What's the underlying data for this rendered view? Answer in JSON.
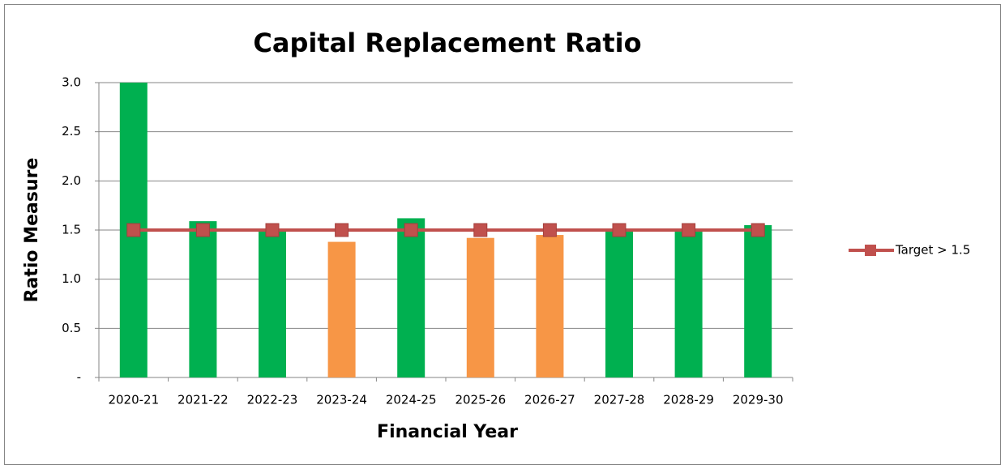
{
  "chart_data": {
    "type": "bar",
    "title": "Capital Replacement Ratio",
    "x_label": "Financial Year",
    "y_label": "Ratio Measure",
    "categories": [
      "2020-21",
      "2021-22",
      "2022-23",
      "2023-24",
      "2024-25",
      "2025-26",
      "2026-27",
      "2027-28",
      "2028-29",
      "2029-30"
    ],
    "series": [
      {
        "type": "bar",
        "colors": [
          "#00b050",
          "#00b050",
          "#00b050",
          "#f79646",
          "#00b050",
          "#f79646",
          "#f79646",
          "#00b050",
          "#00b050",
          "#00b050"
        ],
        "values": [
          3.0,
          1.59,
          1.5,
          1.38,
          1.62,
          1.42,
          1.45,
          1.5,
          1.5,
          1.55
        ]
      },
      {
        "type": "line",
        "name": "Target > 1.5",
        "color": "#c0504d",
        "values": [
          1.5,
          1.5,
          1.5,
          1.5,
          1.5,
          1.5,
          1.5,
          1.5,
          1.5,
          1.5
        ]
      }
    ],
    "ylim": [
      0,
      3
    ],
    "yticks": [
      {
        "value": 0,
        "label": "-"
      },
      0.5,
      {
        "value": 1,
        "label": "1.0"
      },
      1.5,
      {
        "value": 2,
        "label": "2.0"
      },
      2.5,
      {
        "value": 3,
        "label": "3.0"
      }
    ],
    "grid": true,
    "legend": "right"
  }
}
